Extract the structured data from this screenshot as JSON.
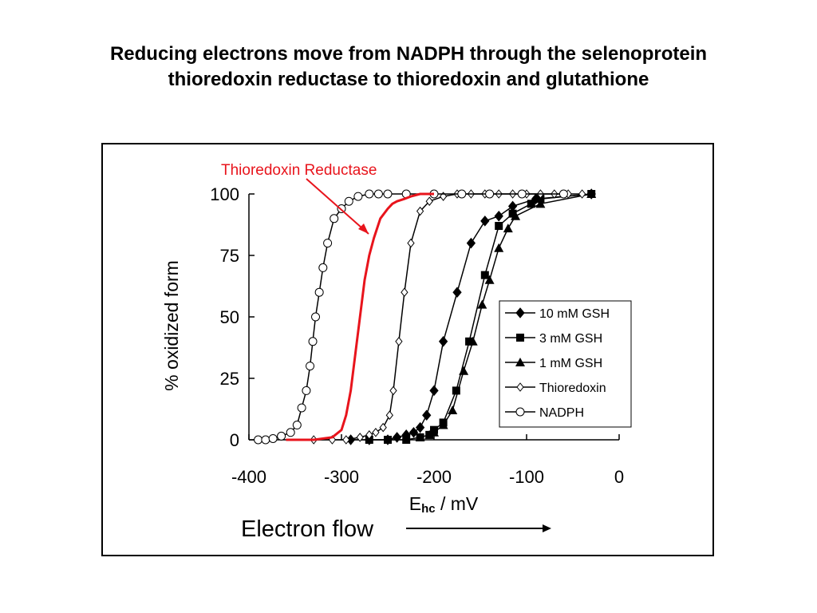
{
  "slide": {
    "title_line1": "Reducing electrons move from NADPH through the selenoprotein",
    "title_line2": "thioredoxin reductase to thioredoxin and glutathione"
  },
  "annotations": {
    "callout": "Thioredoxin Reductase",
    "electron_flow": "Electron flow"
  },
  "colors": {
    "callout": "#e8141c",
    "curves": "#000000"
  },
  "chart_data": {
    "type": "line",
    "title": "",
    "xlabel_main": "E",
    "xlabel_sub": "hc",
    "xlabel_unit": " / mV",
    "ylabel": "% oxidized form",
    "xlim": [
      -400,
      0
    ],
    "ylim": [
      0,
      100
    ],
    "xticks": [
      -400,
      -300,
      -200,
      -100,
      0
    ],
    "xtick_labels": [
      "-400",
      "-300",
      "-200",
      "-100",
      "0"
    ],
    "yticks": [
      0,
      25,
      50,
      75,
      100
    ],
    "ytick_labels": [
      "0",
      "25",
      "50",
      "75",
      "100"
    ],
    "grid": false,
    "legend_position": "right",
    "series": [
      {
        "name": "10 mM GSH",
        "marker": "diamond-filled",
        "x": [
          -290,
          -270,
          -250,
          -240,
          -230,
          -222,
          -215,
          -208,
          -200,
          -190,
          -175,
          -160,
          -145,
          -130,
          -115,
          -90,
          -30
        ],
        "y": [
          0,
          0,
          0,
          1,
          2,
          3,
          5,
          10,
          20,
          40,
          60,
          80,
          89,
          91,
          95,
          98,
          100
        ]
      },
      {
        "name": "3 mM GSH",
        "marker": "square-filled",
        "x": [
          -270,
          -250,
          -230,
          -215,
          -205,
          -200,
          -190,
          -176,
          -162,
          -145,
          -130,
          -115,
          -95,
          -85,
          -30
        ],
        "y": [
          0,
          0,
          0,
          1,
          2,
          4,
          7,
          20,
          40,
          67,
          87,
          92,
          96,
          98,
          100
        ]
      },
      {
        "name": "1 mM GSH",
        "marker": "triangle-filled",
        "x": [
          -215,
          -205,
          -200,
          -190,
          -180,
          -168,
          -158,
          -148,
          -140,
          -130,
          -120,
          -112,
          -85,
          -30
        ],
        "y": [
          1,
          2,
          3,
          6,
          12,
          28,
          40,
          55,
          65,
          78,
          86,
          91,
          96,
          100
        ]
      },
      {
        "name": "Thioredoxin",
        "marker": "diamond-open",
        "x": [
          -330,
          -310,
          -295,
          -280,
          -270,
          -263,
          -255,
          -248,
          -244,
          -238,
          -232,
          -225,
          -215,
          -205,
          -190,
          -175,
          -160,
          -145,
          -130,
          -115,
          -100,
          -85,
          -70,
          -55,
          -40
        ],
        "y": [
          0,
          0,
          0,
          1,
          2,
          3,
          5,
          10,
          20,
          40,
          60,
          80,
          93,
          97,
          99,
          100,
          100,
          100,
          100,
          100,
          100,
          100,
          100,
          100,
          100
        ]
      },
      {
        "name": "NADPH",
        "marker": "circle-open",
        "x": [
          -390,
          -382,
          -374,
          -365,
          -355,
          -348,
          -343,
          -338,
          -334,
          -331,
          -328,
          -324,
          -320,
          -315,
          -308,
          -300,
          -292,
          -282,
          -270,
          -260,
          -250,
          -230,
          -200,
          -170,
          -140,
          -105,
          -60
        ],
        "y": [
          0,
          0,
          0.5,
          1.5,
          3,
          6,
          13,
          20,
          30,
          40,
          50,
          60,
          70,
          80,
          90,
          94,
          97,
          99,
          100,
          100,
          100,
          100,
          100,
          100,
          100,
          100,
          100
        ]
      },
      {
        "name": "",
        "marker": "none",
        "color": "#e8141c",
        "x": [
          -360,
          -330,
          -310,
          -300,
          -295,
          -290,
          -285,
          -280,
          -275,
          -270,
          -265,
          -258,
          -250,
          -245,
          -240,
          -232,
          -225,
          -215,
          -205,
          -200
        ],
        "y": [
          0,
          0,
          1,
          4,
          10,
          20,
          35,
          50,
          65,
          75,
          82,
          90,
          94,
          96,
          97,
          98,
          99,
          100,
          100,
          100
        ]
      }
    ]
  }
}
